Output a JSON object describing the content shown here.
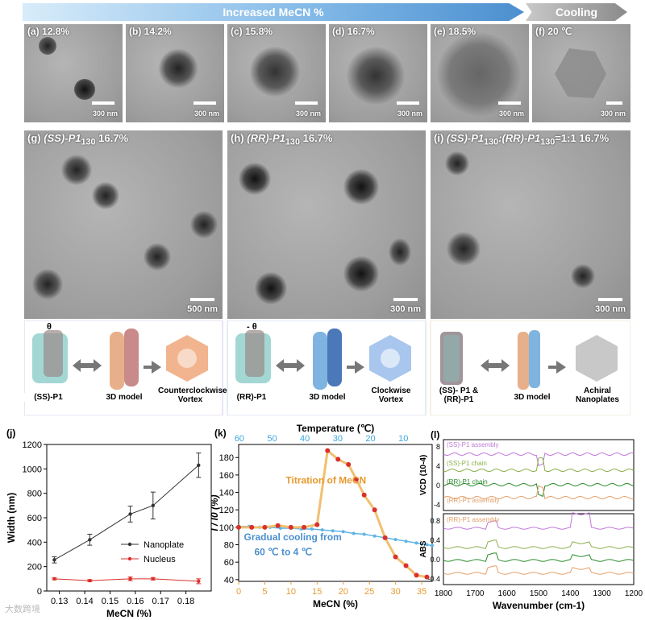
{
  "banner": {
    "increased": "Increased MeCN %",
    "cooling": "Cooling"
  },
  "top_panels": [
    {
      "tag": "(a)",
      "val": "12.8%",
      "scale": "300 nm"
    },
    {
      "tag": "(b)",
      "val": "14.2%",
      "scale": "300 nm"
    },
    {
      "tag": "(c)",
      "val": "15.8%",
      "scale": "300 nm"
    },
    {
      "tag": "(d)",
      "val": "16.7%",
      "scale": "300 nm"
    },
    {
      "tag": "(e)",
      "val": "18.5%",
      "scale": "300 nm"
    },
    {
      "tag": "(f)",
      "val": "20 ℃",
      "scale": "300 nm"
    }
  ],
  "mid_panels": [
    {
      "tag": "(g)",
      "title": "(SS)-P1",
      "sub": "130",
      "pct": "16.7%",
      "scale": "500 nm"
    },
    {
      "tag": "(h)",
      "title": "(RR)-P1",
      "sub": "130",
      "pct": "16.7%",
      "scale": "300 nm"
    },
    {
      "tag": "(i)",
      "title": "(SS)-P1",
      "sub": "130",
      "title2": ":(RR)-P1",
      "sub2": "130",
      "tail": "=1:1 16.7%",
      "scale": "300 nm"
    }
  ],
  "schemes": [
    {
      "left": "(SS)-P1",
      "mid": "3D model",
      "right": "Counterclockwise Vortex",
      "theta": "θ"
    },
    {
      "left": "(RR)-P1",
      "mid": "3D model",
      "right": "Clockwise Vortex",
      "theta": "- θ"
    },
    {
      "left": "(SS)- P1 & (RR)-P1",
      "mid": "3D model",
      "right": "Achiral Nanoplates"
    }
  ],
  "chart_data": [
    {
      "type": "line",
      "tag": "(j)",
      "xlabel": "MeCN (%)",
      "ylabel": "Width (nm)",
      "xlim": [
        0.125,
        0.19
      ],
      "ylim": [
        0,
        1200
      ],
      "xticks": [
        "0.13",
        "0.14",
        "0.15",
        "0.16",
        "0.17",
        "0.18"
      ],
      "yticks": [
        "0",
        "200",
        "400",
        "600",
        "800",
        "1000",
        "1200"
      ],
      "x": [
        0.128,
        0.142,
        0.158,
        0.167,
        0.185
      ],
      "series": [
        {
          "name": "Nanoplate",
          "values": [
            255,
            420,
            630,
            700,
            1030
          ],
          "errors": [
            25,
            45,
            65,
            110,
            100
          ],
          "color": "#333333"
        },
        {
          "name": "Nucleus",
          "values": [
            100,
            85,
            100,
            100,
            80
          ],
          "errors": [
            8,
            8,
            15,
            10,
            20
          ],
          "color": "#d9302b"
        }
      ]
    },
    {
      "type": "line",
      "tag": "(k)",
      "xlabel": "MeCN (%)",
      "ylabel": "I / I0 (%)",
      "toplabel": "Temperature (℃)",
      "xlim": [
        0,
        37
      ],
      "ylim": [
        38,
        195
      ],
      "xticks": [
        "0",
        "5",
        "10",
        "15",
        "20",
        "25",
        "30",
        "35"
      ],
      "yticks": [
        "40",
        "60",
        "80",
        "100",
        "120",
        "140",
        "160",
        "180"
      ],
      "topticks": [
        "60",
        "50",
        "40",
        "30",
        "20",
        "10"
      ],
      "annotations": [
        "Titration of MeCN",
        "Gradual cooling from",
        "60 ℃ to 4 ℃"
      ],
      "series": [
        {
          "name": "Titration of MeCN",
          "color": "#d9302b",
          "line": "#f0c070",
          "x": [
            0,
            2.5,
            5,
            7.5,
            10,
            12.5,
            15,
            17,
            19,
            21,
            22.5,
            24,
            26,
            28,
            30,
            32,
            34,
            36
          ],
          "y": [
            100,
            100,
            100,
            102,
            100,
            100,
            103,
            188,
            178,
            172,
            155,
            137,
            120,
            88,
            66,
            56,
            45,
            43
          ]
        },
        {
          "name": "Gradual cooling from 60 ℃ to 4 ℃",
          "color": "#5fb4e6",
          "x": [
            0,
            2,
            4,
            6,
            8,
            10,
            12,
            14,
            16,
            18,
            20,
            22,
            24,
            26,
            28,
            30,
            32,
            34,
            36,
            37
          ],
          "y": [
            101,
            101,
            100,
            100,
            99,
            99,
            98,
            98,
            97,
            96,
            95,
            93,
            92,
            90,
            88,
            86,
            84,
            82,
            80,
            79
          ]
        }
      ]
    },
    {
      "type": "line",
      "tag": "(l)",
      "xlabel": "Wavenumber (cm-1)",
      "ylabel_top": "VCD (10-4)",
      "ylabel_bottom": "ABS",
      "xticks": [
        "1800",
        "1700",
        "1600",
        "1500",
        "1400",
        "1300",
        "1200"
      ],
      "yticks_top": [
        "-4",
        "0",
        "4",
        "8"
      ],
      "yticks_bottom": [
        "-0.4",
        "0.0",
        "0.4",
        "0.8"
      ],
      "vcd_legend": [
        "(SS)-P1 assembly",
        "(SS)-P1 chain",
        "(RR)-P1 chain",
        "(RR)-P1 assembly"
      ],
      "abs_legend": [
        "(RR)-P1 assembly"
      ],
      "colors": [
        "#c07ad8",
        "#8ab04a",
        "#2a8a2a",
        "#e3a06a"
      ]
    }
  ],
  "watermark": "大数跨境"
}
